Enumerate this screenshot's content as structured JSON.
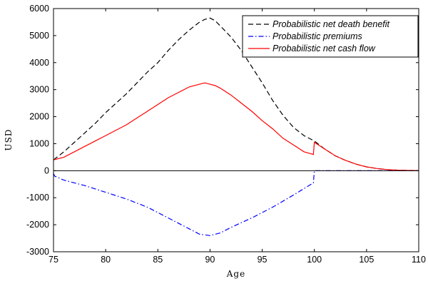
{
  "chart_data": {
    "type": "line",
    "xlabel": "Age",
    "ylabel": "USD",
    "xlim": [
      75,
      110
    ],
    "ylim": [
      -3000,
      6000
    ],
    "xticks": [
      75,
      80,
      85,
      90,
      95,
      100,
      105,
      110
    ],
    "yticks": [
      -3000,
      -2000,
      -1000,
      0,
      1000,
      2000,
      3000,
      4000,
      5000,
      6000
    ],
    "grid": false,
    "legend_position": "top-right",
    "series": [
      {
        "name": "Probabilistic net death benefit",
        "color": "#000000",
        "style": "dashed",
        "x": [
          75,
          76,
          77,
          78,
          79,
          80,
          81,
          82,
          83,
          84,
          85,
          86,
          87,
          88,
          89,
          89.5,
          90,
          90.5,
          91,
          92,
          93,
          94,
          95,
          96,
          97,
          98,
          99,
          100,
          101,
          102,
          103,
          104,
          105,
          106,
          107,
          108,
          109,
          110
        ],
        "y": [
          400,
          700,
          1050,
          1400,
          1750,
          2150,
          2500,
          2850,
          3250,
          3650,
          4000,
          4450,
          4850,
          5200,
          5500,
          5600,
          5650,
          5550,
          5350,
          4950,
          4450,
          3850,
          3250,
          2600,
          2050,
          1600,
          1300,
          1100,
          800,
          550,
          380,
          240,
          140,
          80,
          40,
          20,
          10,
          5
        ]
      },
      {
        "name": "Probabilistic premiums",
        "color": "#0000ff",
        "style": "dash-dot",
        "x": [
          75,
          75.1,
          76,
          78,
          80,
          82,
          84,
          86,
          88,
          89,
          90,
          91,
          92,
          94,
          96,
          98,
          99.9,
          100,
          101,
          103,
          105,
          107,
          110
        ],
        "y": [
          -100,
          -200,
          -350,
          -550,
          -800,
          -1050,
          -1350,
          -1750,
          -2150,
          -2350,
          -2400,
          -2300,
          -2100,
          -1750,
          -1350,
          -900,
          -450,
          0,
          0,
          0,
          0,
          0,
          0
        ]
      },
      {
        "name": "Probabilistic net cash flow",
        "color": "#ff0000",
        "style": "solid",
        "x": [
          75,
          76,
          77,
          78,
          79,
          80,
          81,
          82,
          83,
          84,
          85,
          86,
          87,
          88,
          89,
          89.5,
          90,
          90.5,
          91,
          92,
          93,
          94,
          95,
          96,
          97,
          98,
          99,
          99.9,
          100,
          101,
          102,
          103,
          104,
          105,
          106,
          107,
          108,
          109,
          110
        ],
        "y": [
          400,
          500,
          700,
          900,
          1100,
          1300,
          1500,
          1700,
          1950,
          2200,
          2450,
          2700,
          2900,
          3100,
          3200,
          3250,
          3200,
          3150,
          3050,
          2800,
          2500,
          2200,
          1850,
          1550,
          1200,
          950,
          700,
          600,
          1050,
          800,
          550,
          380,
          240,
          140,
          80,
          40,
          20,
          10,
          5
        ]
      }
    ]
  }
}
